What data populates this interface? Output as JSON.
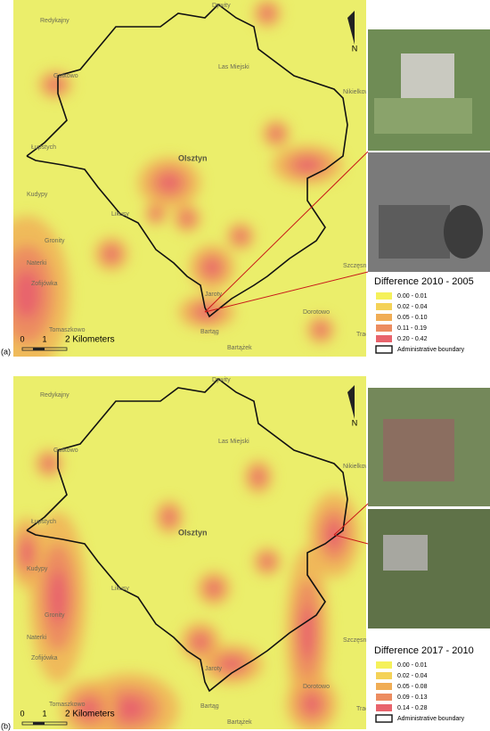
{
  "panels": [
    {
      "label": "(a)",
      "legend": {
        "title": "Difference 2010 - 2005",
        "items": [
          {
            "label": "0.00 - 0.01",
            "color": "#f5f15a"
          },
          {
            "label": "0.02 - 0.04",
            "color": "#f4d257"
          },
          {
            "label": "0.05 - 0.10",
            "color": "#f0ad55"
          },
          {
            "label": "0.11 - 0.19",
            "color": "#ec8c60"
          },
          {
            "label": "0.20 - 0.42",
            "color": "#e8636c"
          }
        ],
        "boundary": "Administrative boundary"
      },
      "scale": [
        "0",
        "1",
        "2 Kilometers"
      ]
    },
    {
      "label": "(b)",
      "legend": {
        "title": "Difference 2017 - 2010",
        "items": [
          {
            "label": "0.00 - 0.01",
            "color": "#f5f15a"
          },
          {
            "label": "0.02 - 0.04",
            "color": "#f4d257"
          },
          {
            "label": "0.05 - 0.08",
            "color": "#f0ad55"
          },
          {
            "label": "0.09 - 0.13",
            "color": "#ec8c60"
          },
          {
            "label": "0.14 - 0.28",
            "color": "#e8636c"
          }
        ],
        "boundary": "Administrative boundary"
      },
      "scale": [
        "0",
        "1",
        "2 Kilometers"
      ]
    }
  ],
  "places": [
    "Olsztyn",
    "Dywity",
    "Redykajny",
    "Gutkowo",
    "Łupstych",
    "Kudypy",
    "Gronity",
    "Naterki",
    "Zofijówka",
    "Tomaszkowo",
    "Jaroty",
    "Bartąg",
    "Bartążek",
    "Nikielkowo",
    "Likusy",
    "Las Miejski",
    "Dorotowo",
    "Szczęsne",
    "Track"
  ],
  "north": "N"
}
